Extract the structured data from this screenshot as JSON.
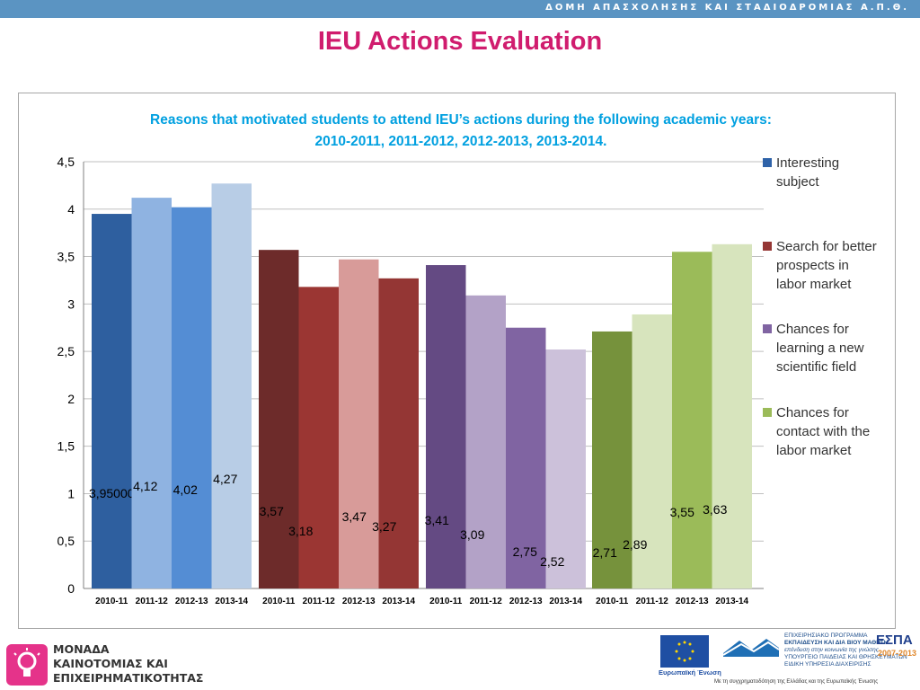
{
  "header": {
    "org_name": "ΔΟΜΗ ΑΠΑΣΧΟΛΗΣΗΣ ΚΑΙ ΣΤΑΔΙΟΔΡΟΜΙΑΣ Α.Π.Θ.",
    "bar_color": "#5b94c2"
  },
  "page_title": "IEU Actions Evaluation",
  "title_color": "#d01c6e",
  "footer": {
    "unit_line1": "ΜΟΝΑΔΑ",
    "unit_line2": "ΚΑΙΝΟΤΟΜΙΑΣ ΚΑΙ",
    "unit_line3": "ΕΠΙΧΕΙΡΗΜΑΤΙΚΟΤΗΤΑΣ",
    "eu_label": "Ευρωπαϊκή Ένωση",
    "program_line1": "ΕΠΙΧΕΙΡΗΣΙΑΚΟ ΠΡΟΓΡΑΜΜΑ",
    "program_line2": "ΕΚΠΑΙΔΕΥΣΗ ΚΑΙ ΔΙΑ ΒΙΟΥ ΜΑΘΗΣΗ",
    "program_line3": "επένδυση στην κοινωνία της γνώσης",
    "ministry_line1": "ΥΠΟΥΡΓΕΙΟ ΠΑΙΔΕΙΑΣ ΚΑΙ ΘΡΗΣΚΕΥΜΑΤΩΝ",
    "ministry_line2": "ΕΙΔΙΚΗ ΥΠΗΡΕΣΙΑ ΔΙΑΧΕΙΡΙΣΗΣ",
    "cofund_text": "Με τη συγχρηματοδότηση της Ελλάδας και της Ευρωπαϊκής Ένωσης",
    "espa_title": "ΕΣΠΑ",
    "espa_years": "2007-2013"
  },
  "chart_data": {
    "type": "bar",
    "title_line1": "Reasons that motivated students to attend IEU’s actions during the following academic years:",
    "title_line2": "2010-2011, 2011-2012, 2012-2013, 2013-2014.",
    "title_color": "#00a0e0",
    "ylim": [
      0,
      4.5
    ],
    "yticks": [
      "0",
      "0,5",
      "1",
      "1,5",
      "2",
      "2,5",
      "3",
      "3,5",
      "4",
      "4,5"
    ],
    "categories": [
      "2010-11",
      "2011-12",
      "2012-13",
      "2013-14"
    ],
    "grid": true,
    "legend_position": "right",
    "series": [
      {
        "name": "Interesting subject",
        "legend_lines": [
          "Interesting",
          "subject"
        ],
        "legend_color": "#2e62a8",
        "colors": [
          "#2e5f9f",
          "#8fb3e1",
          "#548dd4",
          "#b8cde6"
        ],
        "values": [
          3.95,
          4.12,
          4.02,
          4.27
        ],
        "labels": [
          "3,95000",
          "4,12",
          "4,02",
          "4,27"
        ]
      },
      {
        "name": "Search for better prospects in labor market",
        "legend_lines": [
          "Search for better",
          "prospects in",
          "labor market"
        ],
        "legend_color": "#953735",
        "colors": [
          "#6d2b2a",
          "#9b3633",
          "#d89b99",
          "#943634"
        ],
        "values": [
          3.57,
          3.18,
          3.47,
          3.27
        ],
        "labels": [
          "3,57",
          "3,18",
          "3,47",
          "3,27"
        ]
      },
      {
        "name": "Chances for learning a new scientific field",
        "legend_lines": [
          "Chances for",
          "learning a new",
          "scientific field"
        ],
        "legend_color": "#8064a2",
        "colors": [
          "#644a83",
          "#b3a2c7",
          "#8064a2",
          "#ccc1da"
        ],
        "values": [
          3.41,
          3.09,
          2.75,
          2.52
        ],
        "labels": [
          "3,41",
          "3,09",
          "2,75",
          "2,52"
        ]
      },
      {
        "name": "Chances for contact with the labor market",
        "legend_lines": [
          "Chances for",
          "contact with the",
          "labor market"
        ],
        "legend_color": "#9bbb59",
        "colors": [
          "#76923c",
          "#d7e4bd",
          "#9bbb59",
          "#d7e4bd"
        ],
        "values": [
          2.71,
          2.89,
          3.55,
          3.63
        ],
        "labels": [
          "2,71",
          "2,89",
          "3,55",
          "3,63"
        ]
      }
    ]
  }
}
